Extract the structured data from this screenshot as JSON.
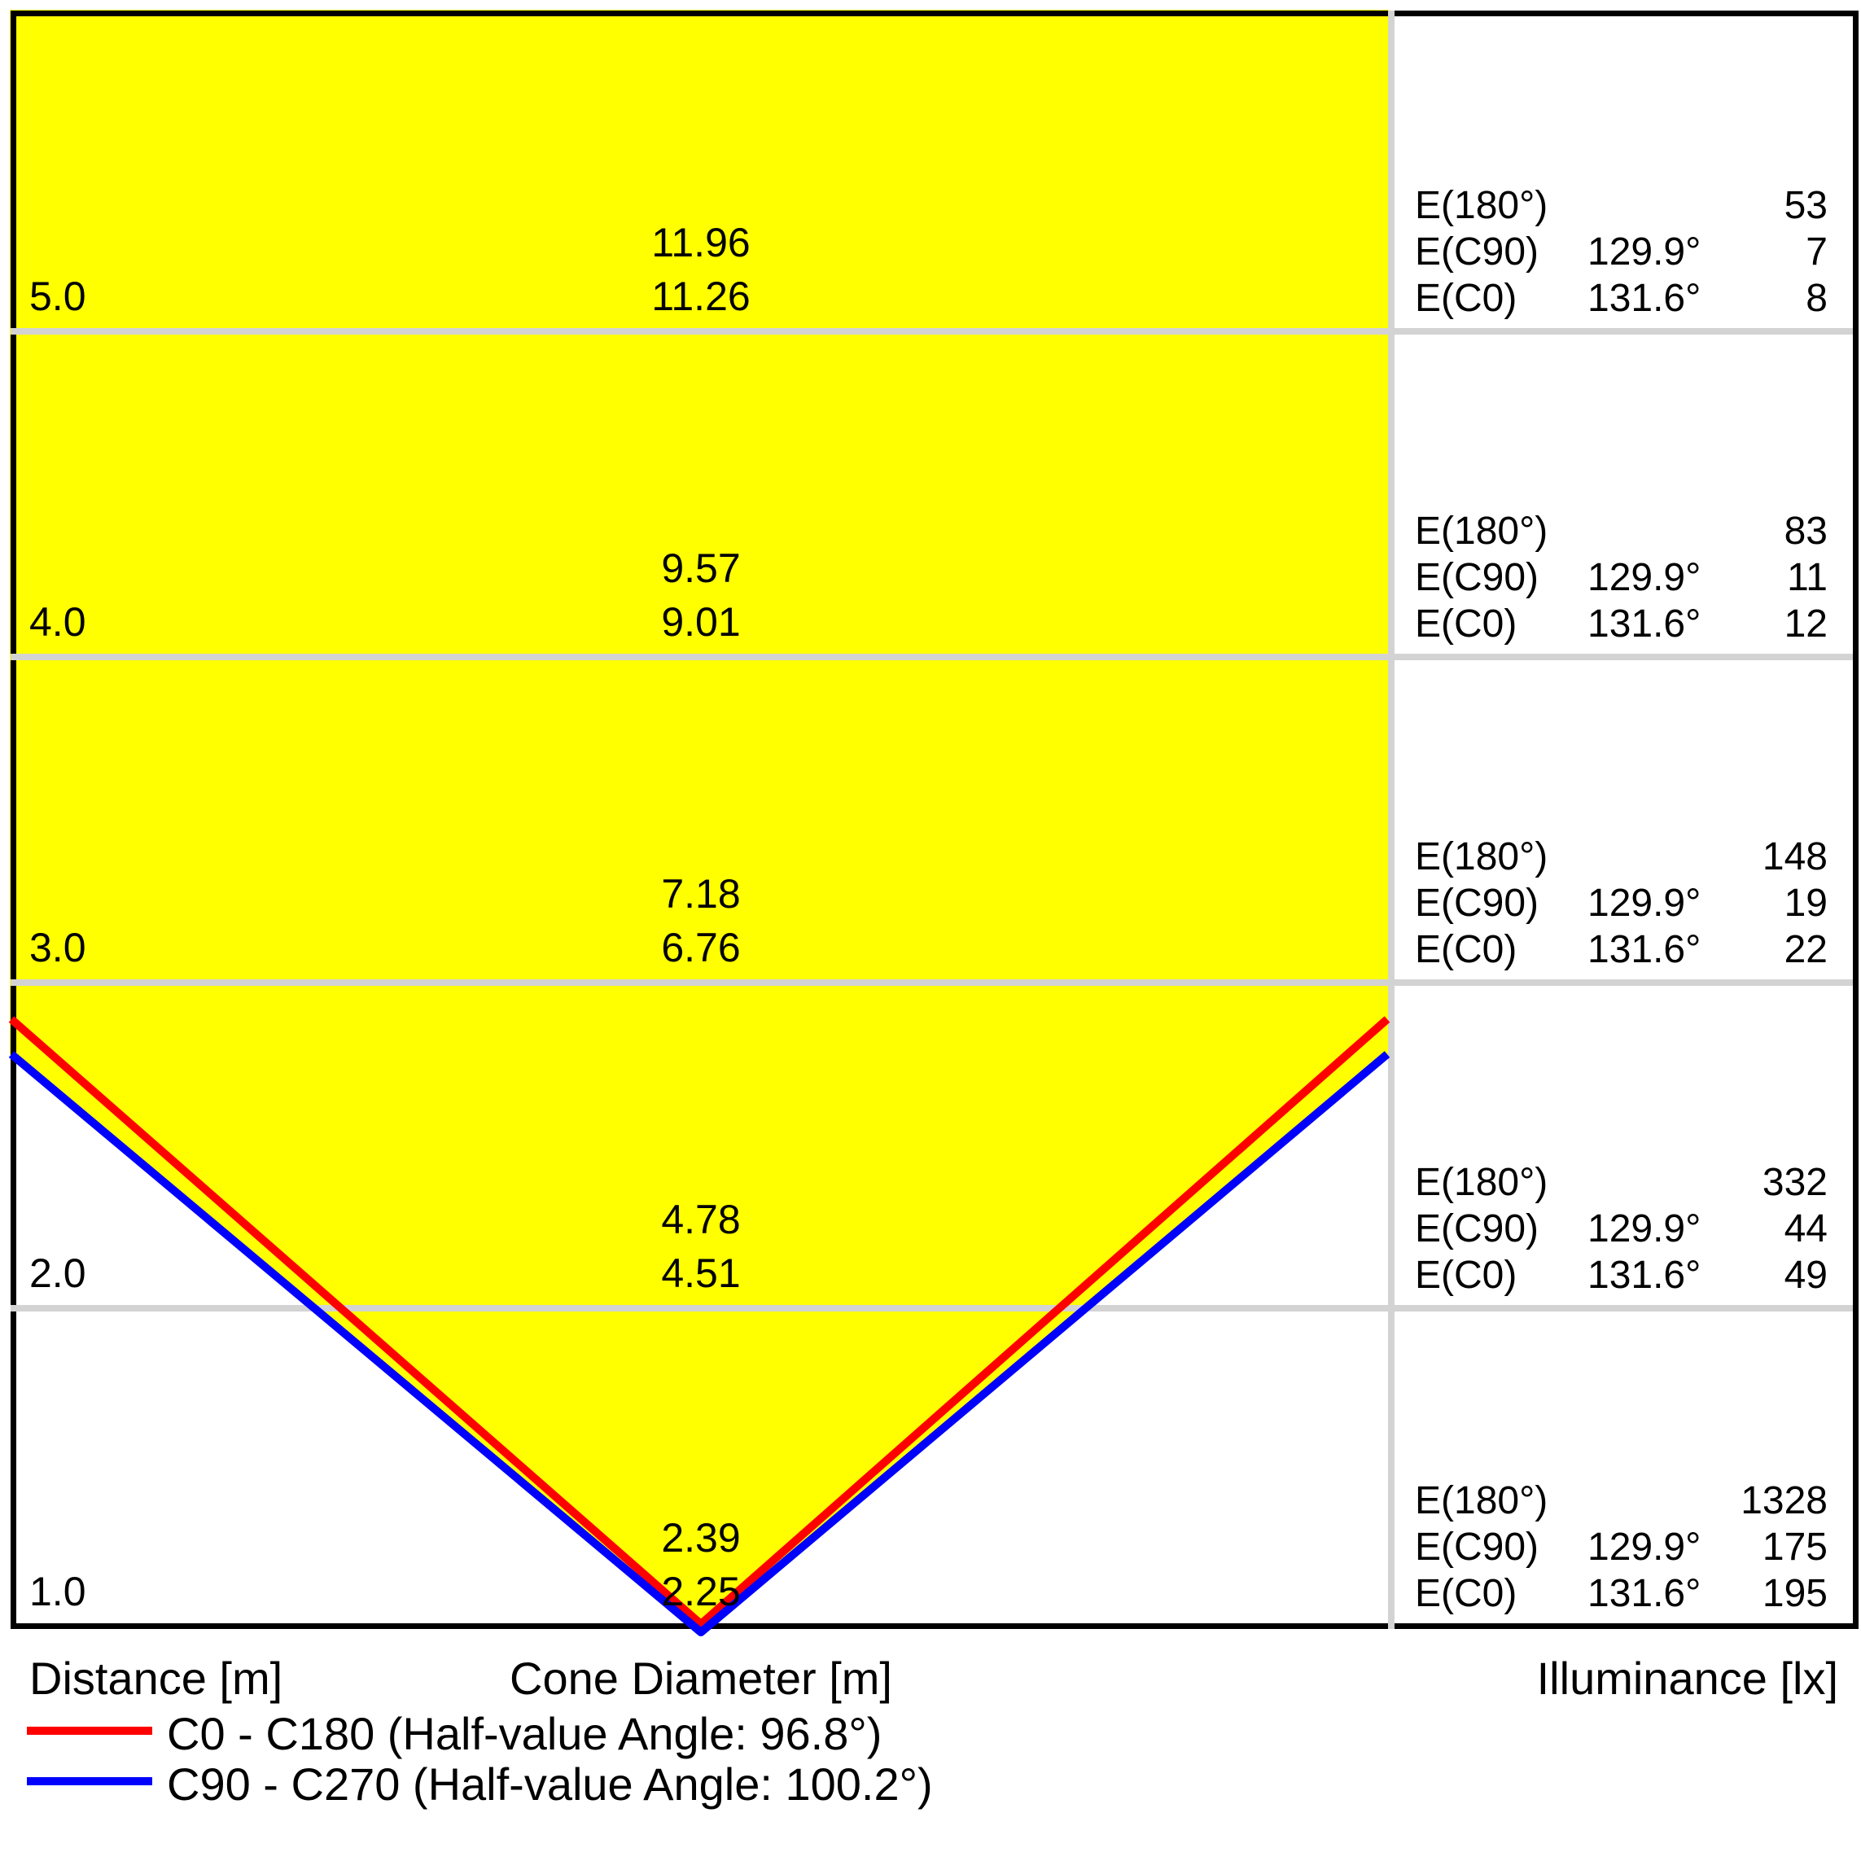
{
  "title": "Luminaire light cone diagram",
  "axis": {
    "distance": "Distance [m]",
    "cone_diameter": "Cone Diameter [m]",
    "illuminance": "Illuminance [lx]"
  },
  "e_labels": {
    "e180": "E(180°)",
    "ec90": "E(C90)",
    "ec0": "E(C0)"
  },
  "legend": [
    {
      "color": "#ff0000",
      "label": "C0 - C180 (Half-value Angle: 96.8°)"
    },
    {
      "color": "#0000ff",
      "label": "C90 - C270 (Half-value Angle: 100.2°)"
    }
  ],
  "colors": {
    "cone_fill": "#ffff00",
    "c0_line": "#ff0000",
    "c90_line": "#0000ff",
    "separator": "#d3d3d3",
    "border": "#000000"
  },
  "chart_data": {
    "type": "cone-diagram",
    "half_value_angle_c0_c180_deg": 96.8,
    "half_value_angle_c90_c270_deg": 100.2,
    "distance_axis_m": [
      5.0,
      4.0,
      3.0,
      2.0,
      1.0
    ],
    "rows": [
      {
        "distance": "5.0",
        "cone_diameter_c90": "11.96",
        "cone_diameter_c0": "11.26",
        "e180": "53",
        "ec90_angle": "129.9°",
        "ec90": "7",
        "ec0_angle": "131.6°",
        "ec0": "8"
      },
      {
        "distance": "4.0",
        "cone_diameter_c90": "9.57",
        "cone_diameter_c0": "9.01",
        "e180": "83",
        "ec90_angle": "129.9°",
        "ec90": "11",
        "ec0_angle": "131.6°",
        "ec0": "12"
      },
      {
        "distance": "3.0",
        "cone_diameter_c90": "7.18",
        "cone_diameter_c0": "6.76",
        "e180": "148",
        "ec90_angle": "129.9°",
        "ec90": "19",
        "ec0_angle": "131.6°",
        "ec0": "22"
      },
      {
        "distance": "2.0",
        "cone_diameter_c90": "4.78",
        "cone_diameter_c0": "4.51",
        "e180": "332",
        "ec90_angle": "129.9°",
        "ec90": "44",
        "ec0_angle": "131.6°",
        "ec0": "49"
      },
      {
        "distance": "1.0",
        "cone_diameter_c90": "2.39",
        "cone_diameter_c0": "2.25",
        "e180": "1328",
        "ec90_angle": "129.9°",
        "ec90": "175",
        "ec0_angle": "131.6°",
        "ec0": "195"
      }
    ]
  }
}
